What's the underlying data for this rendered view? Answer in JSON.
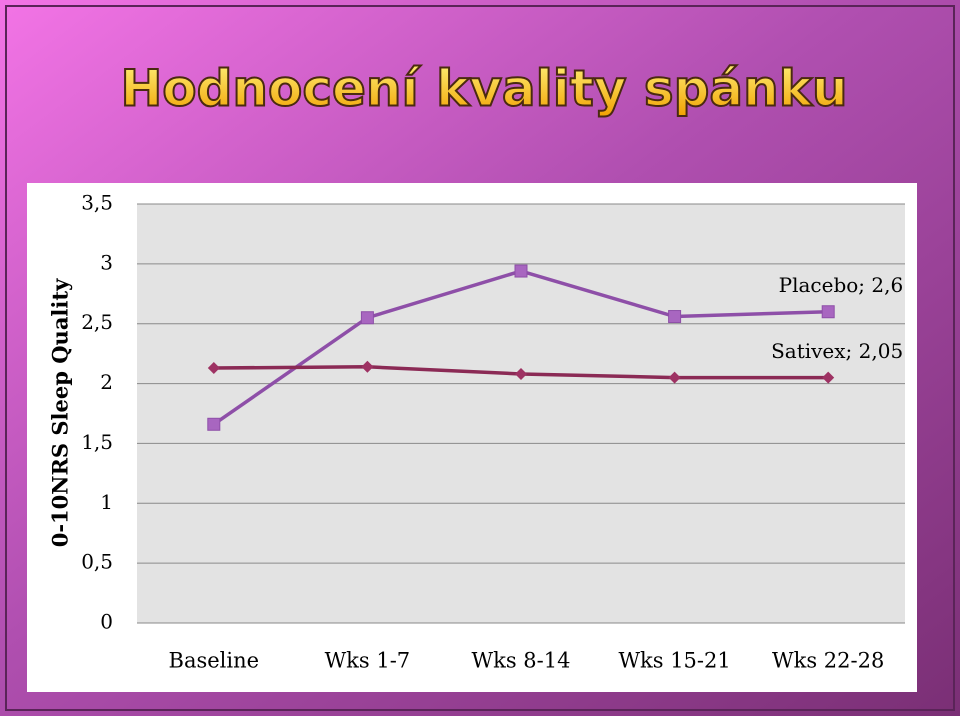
{
  "title": "Hodnocení kvality spánku",
  "chart_data": {
    "type": "line",
    "y_label": "0-10NRS Sleep Quality",
    "categories": [
      "Baseline",
      "Wks 1-7",
      "Wks 8-14",
      "Wks 15-21",
      "Wks 22-28"
    ],
    "series": [
      {
        "name": "Placebo",
        "color": "#8e4fa8",
        "marker": "square",
        "marker_color": "#a866c0",
        "values": [
          1.66,
          2.55,
          2.94,
          2.56,
          2.6
        ],
        "value_labels": [
          null,
          null,
          null,
          null,
          "Placebo; 2,6"
        ]
      },
      {
        "name": "Sativex",
        "color": "#8b2a55",
        "marker": "diamond",
        "marker_color": "#9e3263",
        "values": [
          2.13,
          2.14,
          2.08,
          2.05,
          2.05
        ],
        "value_labels": [
          null,
          null,
          null,
          null,
          "Sativex; 2,05"
        ]
      }
    ],
    "ylim": [
      0,
      3.5
    ],
    "yticks": [
      0,
      {
        "value": 0.5,
        "label": "0,5"
      },
      1,
      {
        "value": 1.5,
        "label": "1,5"
      },
      2,
      {
        "value": 2.5,
        "label": "2,5"
      },
      3,
      {
        "value": 3.5,
        "label": "3,5"
      }
    ],
    "grid": true
  }
}
